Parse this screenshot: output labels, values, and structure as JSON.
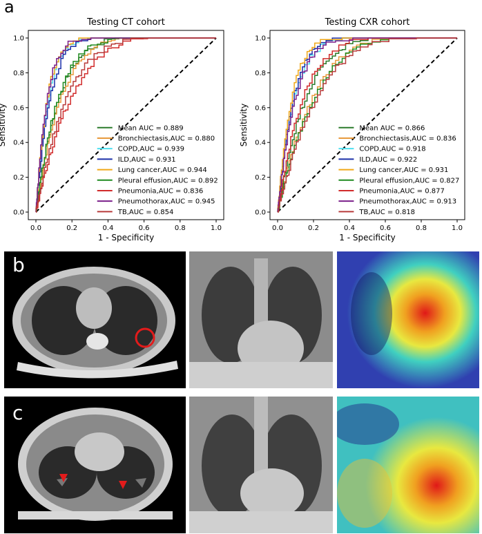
{
  "panel_labels": {
    "a": "a",
    "b": "b",
    "c": "c"
  },
  "colors": {
    "Mean": "#2a7a2a",
    "Bronchiectasis": "#e89a3c",
    "COPD": "#4fe0f0",
    "ILD": "#1a2fa8",
    "Lung cancer": "#f0a818",
    "Pleural effusion": "#1e8a1e",
    "Pneumonia": "#d12a2a",
    "Pneumothorax": "#7a1e8a",
    "TB": "#b83a3a",
    "diagonal": "#000000"
  },
  "chart_data": [
    {
      "type": "line",
      "title": "Testing CT cohort",
      "xlabel": "1 - Specificity",
      "ylabel": "Sensitivity",
      "xlim": [
        0,
        1
      ],
      "ylim": [
        0,
        1
      ],
      "xticks": [
        "0.0",
        "0.2",
        "0.4",
        "0.6",
        "0.8",
        "1.0"
      ],
      "yticks": [
        "0.0",
        "0.2",
        "0.4",
        "0.6",
        "0.8",
        "1.0"
      ],
      "legend_position": "lower-right",
      "diagonal": true,
      "series": [
        {
          "name": "Mean",
          "label": "Mean AUC = 0.889",
          "auc": 0.889
        },
        {
          "name": "Bronchiectasis",
          "label": "Bronchiectasis,AUC = 0.880",
          "auc": 0.88
        },
        {
          "name": "COPD",
          "label": "COPD,AUC = 0.939",
          "auc": 0.939
        },
        {
          "name": "ILD",
          "label": "ILD,AUC = 0.931",
          "auc": 0.931
        },
        {
          "name": "Lung cancer",
          "label": "Lung cancer,AUC = 0.944",
          "auc": 0.944
        },
        {
          "name": "Pleural effusion",
          "label": "Pleural effusion,AUC = 0.892",
          "auc": 0.892
        },
        {
          "name": "Pneumonia",
          "label": "Pneumonia,AUC = 0.836",
          "auc": 0.836
        },
        {
          "name": "Pneumothorax",
          "label": "Pneumothorax,AUC = 0.945",
          "auc": 0.945
        },
        {
          "name": "TB",
          "label": "TB,AUC = 0.854",
          "auc": 0.854
        }
      ]
    },
    {
      "type": "line",
      "title": "Testing CXR cohort",
      "xlabel": "1 - Specificity",
      "ylabel": "Sensitivity",
      "xlim": [
        0,
        1
      ],
      "ylim": [
        0,
        1
      ],
      "xticks": [
        "0.0",
        "0.2",
        "0.4",
        "0.6",
        "0.8",
        "1.0"
      ],
      "yticks": [
        "0.0",
        "0.2",
        "0.4",
        "0.6",
        "0.8",
        "1.0"
      ],
      "legend_position": "lower-right",
      "diagonal": true,
      "series": [
        {
          "name": "Mean",
          "label": "Mean AUC = 0.866",
          "auc": 0.866
        },
        {
          "name": "Bronchiectasis",
          "label": "Bronchiectasis,AUC = 0.836",
          "auc": 0.836
        },
        {
          "name": "COPD",
          "label": "COPD,AUC = 0.918",
          "auc": 0.918
        },
        {
          "name": "ILD",
          "label": "ILD,AUC = 0.922",
          "auc": 0.922
        },
        {
          "name": "Lung cancer",
          "label": "Lung cancer,AUC = 0.931",
          "auc": 0.931
        },
        {
          "name": "Pleural effusion",
          "label": "Pleural effusion,AUC = 0.827",
          "auc": 0.827
        },
        {
          "name": "Pneumonia",
          "label": "Pneumonia,AUC = 0.877",
          "auc": 0.877
        },
        {
          "name": "Pneumothorax",
          "label": "Pneumothorax,AUC = 0.913",
          "auc": 0.913
        },
        {
          "name": "TB",
          "label": "TB,AUC = 0.818",
          "auc": 0.818
        }
      ]
    }
  ]
}
